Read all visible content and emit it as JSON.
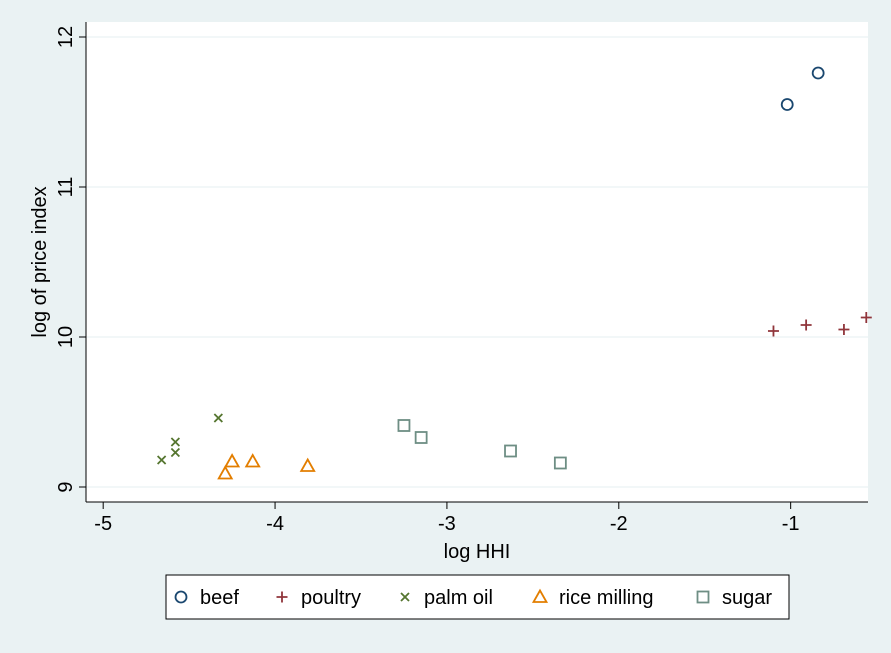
{
  "chart_data": {
    "type": "scatter",
    "title": "",
    "xlabel": "log HHI",
    "ylabel": "log of price index",
    "xlim": [
      -5.1,
      -0.55
    ],
    "ylim": [
      8.9,
      12.1
    ],
    "xticks": [
      -5,
      -4,
      -3,
      -2,
      -1
    ],
    "xtick_labels": [
      "-5",
      "-4",
      "-3",
      "-2",
      "-1"
    ],
    "yticks": [
      9,
      10,
      11,
      12
    ],
    "ytick_labels": [
      "9",
      "10",
      "11",
      "12"
    ],
    "grid": "horizontal",
    "legend_position": "bottom",
    "series": [
      {
        "name": "beef",
        "marker": "circle",
        "color": "#1a476f",
        "points": [
          [
            -1.02,
            11.55
          ],
          [
            -0.84,
            11.76
          ]
        ]
      },
      {
        "name": "poultry",
        "marker": "plus",
        "color": "#90353b",
        "points": [
          [
            -1.1,
            10.04
          ],
          [
            -0.91,
            10.08
          ],
          [
            -0.69,
            10.05
          ],
          [
            -0.56,
            10.13
          ]
        ]
      },
      {
        "name": "palm oil",
        "marker": "x",
        "color": "#55752f",
        "points": [
          [
            -4.66,
            9.18
          ],
          [
            -4.58,
            9.23
          ],
          [
            -4.58,
            9.3
          ],
          [
            -4.33,
            9.46
          ]
        ]
      },
      {
        "name": "rice milling",
        "marker": "triangle",
        "color": "#e37e00",
        "points": [
          [
            -4.29,
            9.09
          ],
          [
            -4.25,
            9.17
          ],
          [
            -4.13,
            9.17
          ],
          [
            -3.81,
            9.14
          ]
        ]
      },
      {
        "name": "sugar",
        "marker": "square",
        "color": "#6e8e84",
        "points": [
          [
            -3.25,
            9.41
          ],
          [
            -3.15,
            9.33
          ],
          [
            -2.63,
            9.24
          ],
          [
            -2.34,
            9.16
          ]
        ]
      }
    ]
  },
  "colors": {
    "background": "#eaf2f3",
    "plot_area": "#ffffff",
    "gridline": "#eaf2f3"
  }
}
